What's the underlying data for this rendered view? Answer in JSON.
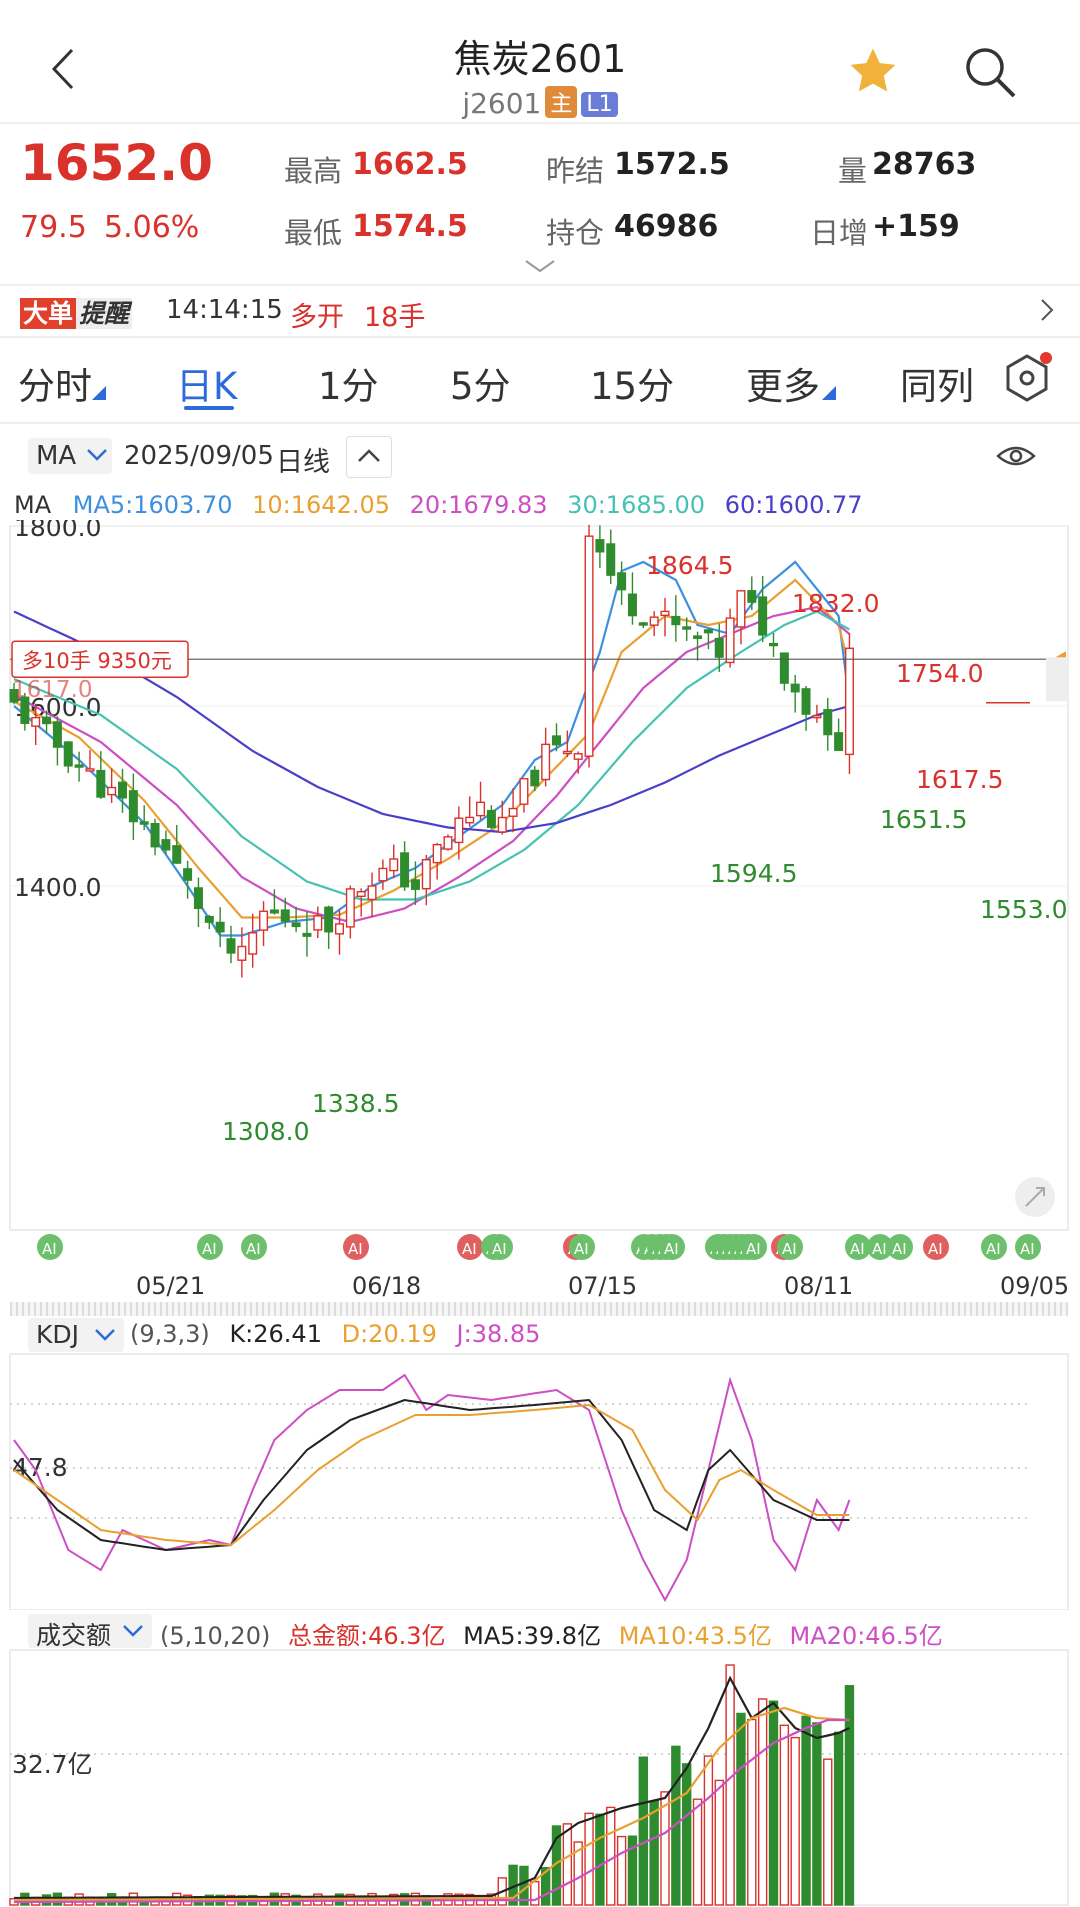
{
  "header": {
    "title": "焦炭2601",
    "code": "j2601",
    "badge_main": "主",
    "badge_l1": "L1"
  },
  "quote": {
    "price": "1652.0",
    "change": "79.5",
    "change_pct": "5.06%",
    "high_label": "最高",
    "high": "1662.5",
    "low_label": "最低",
    "low": "1574.5",
    "prev_label": "昨结",
    "prev": "1572.5",
    "oi_label": "持仓",
    "oi": "46986",
    "vol_label": "量",
    "vol": "28763",
    "day_inc_label": "日增",
    "day_inc": "+159"
  },
  "alert": {
    "tag1": "大单",
    "tag2": "提醒",
    "time": "14:14:15",
    "action": "多开",
    "lots": "18手"
  },
  "tabs": [
    "分时",
    "日K",
    "1分",
    "5分",
    "15分",
    "更多",
    "同列"
  ],
  "kline": {
    "indicator": "MA",
    "date": "2025/09/05",
    "period": "日线",
    "ma_label": "MA",
    "ma5": "MA5:1603.70",
    "ma10": "10:1642.05",
    "ma20": "20:1679.83",
    "ma30": "30:1685.00",
    "ma60": "60:1600.77",
    "y1": "1800.0",
    "y2": "1600.0",
    "y3": "1400.0",
    "pos_label": "多10手 9350元",
    "pos_price": "1617.0",
    "ann": [
      "1864.5",
      "1832.0",
      "1754.0",
      "1651.5",
      "1594.5",
      "1553.0",
      "1338.5",
      "1308.0",
      "1617.5"
    ],
    "dates": [
      "05/21",
      "06/18",
      "07/15",
      "08/11",
      "09/05"
    ],
    "ai": "AI"
  },
  "kdj": {
    "name": "KDJ",
    "params": "(9,3,3)",
    "k": "K:26.41",
    "d": "D:20.19",
    "j": "J:38.85",
    "level": "47.8"
  },
  "amount": {
    "name": "成交额",
    "params": "(5,10,20)",
    "total": "总金额:46.3亿",
    "ma5": "MA5:39.8亿",
    "ma10": "MA10:43.5亿",
    "ma20": "MA20:46.5亿",
    "level": "32.7亿"
  },
  "colors": {
    "up": "#d9312b",
    "down": "#2e8b2e",
    "ma5": "#3d8fe0",
    "ma10": "#e8a030",
    "ma20": "#cc4fc4",
    "ma30": "#45c2b2",
    "ma60": "#4a3fc8"
  }
}
